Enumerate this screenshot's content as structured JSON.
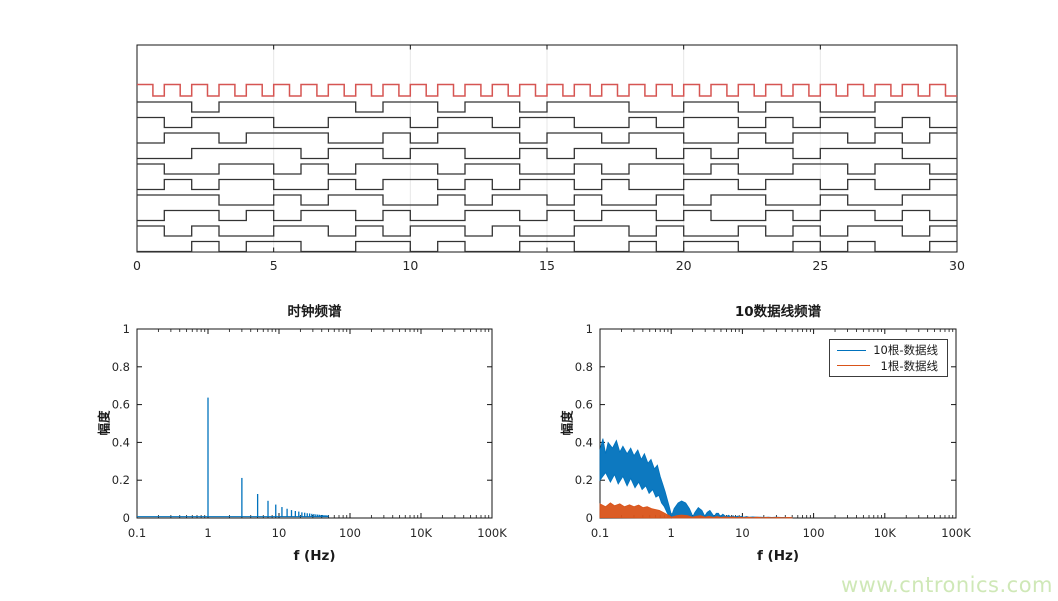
{
  "watermark": {
    "text": "www.cntronics.com",
    "color": "#cfe8b7"
  },
  "colors": {
    "clock_red": "#d65552",
    "data_black": "#333333",
    "series_blue": "#0072BD",
    "series_orange": "#D95319",
    "grid": "#e7e7e7",
    "axis": "#141414",
    "tick_label": "#262626"
  },
  "chart_data": [
    {
      "type": "line",
      "id": "digital-waveforms",
      "title": "",
      "xlim": [
        0,
        30
      ],
      "xticks": [
        0,
        5,
        10,
        15,
        20,
        25,
        30
      ],
      "x_tick_labels": [
        "0",
        "5",
        "10",
        "15",
        "20",
        "25",
        "30"
      ],
      "grid": "vertical-major",
      "clock": {
        "period": 1,
        "duty_high": 0.58,
        "cycles": 30,
        "color": "#d65552"
      },
      "data_signals": {
        "count": 10,
        "bit_period": 1,
        "color": "#333333",
        "bits": [
          [
            1,
            1,
            0,
            1,
            1,
            1,
            1,
            1,
            0,
            1,
            1,
            0,
            1,
            1,
            0,
            1,
            1,
            1,
            0,
            0,
            1,
            1,
            0,
            1,
            1,
            0,
            0,
            1,
            1,
            1
          ],
          [
            1,
            0,
            1,
            1,
            1,
            0,
            0,
            1,
            1,
            1,
            0,
            1,
            1,
            0,
            1,
            1,
            0,
            0,
            1,
            0,
            1,
            1,
            0,
            1,
            0,
            1,
            1,
            0,
            1,
            0
          ],
          [
            0,
            1,
            1,
            0,
            1,
            1,
            1,
            0,
            0,
            1,
            0,
            1,
            1,
            1,
            0,
            1,
            1,
            0,
            1,
            1,
            0,
            0,
            1,
            0,
            1,
            1,
            0,
            1,
            0,
            1
          ],
          [
            0,
            0,
            1,
            1,
            1,
            1,
            0,
            1,
            1,
            0,
            1,
            1,
            0,
            0,
            1,
            0,
            1,
            1,
            1,
            0,
            1,
            0,
            1,
            1,
            0,
            1,
            1,
            1,
            0,
            0
          ],
          [
            1,
            0,
            0,
            1,
            1,
            0,
            1,
            0,
            1,
            1,
            1,
            0,
            1,
            1,
            0,
            0,
            1,
            0,
            1,
            1,
            0,
            1,
            0,
            0,
            1,
            1,
            0,
            1,
            1,
            0
          ],
          [
            0,
            1,
            0,
            1,
            1,
            0,
            0,
            1,
            0,
            1,
            1,
            0,
            1,
            0,
            1,
            1,
            0,
            1,
            0,
            0,
            1,
            1,
            0,
            1,
            1,
            0,
            1,
            0,
            0,
            1
          ],
          [
            1,
            1,
            1,
            0,
            0,
            1,
            0,
            1,
            1,
            0,
            0,
            1,
            0,
            1,
            1,
            0,
            1,
            0,
            0,
            1,
            0,
            1,
            1,
            0,
            0,
            1,
            0,
            0,
            1,
            1
          ],
          [
            0,
            1,
            1,
            0,
            1,
            0,
            1,
            1,
            0,
            1,
            0,
            0,
            1,
            1,
            0,
            1,
            0,
            1,
            1,
            0,
            1,
            0,
            0,
            1,
            0,
            1,
            1,
            0,
            1,
            0
          ],
          [
            1,
            0,
            1,
            0,
            0,
            1,
            1,
            0,
            1,
            0,
            1,
            1,
            0,
            1,
            0,
            0,
            1,
            1,
            0,
            1,
            0,
            0,
            1,
            0,
            1,
            0,
            1,
            1,
            0,
            1
          ],
          [
            0,
            0,
            1,
            0,
            1,
            1,
            0,
            0,
            1,
            1,
            0,
            1,
            0,
            0,
            1,
            1,
            0,
            0,
            1,
            0,
            1,
            1,
            0,
            0,
            1,
            0,
            1,
            0,
            0,
            1
          ]
        ]
      }
    },
    {
      "type": "stem",
      "id": "clock-spectrum",
      "title": "时钟频谱",
      "xlabel": "f (Hz)",
      "ylabel": "幅度",
      "xscale": "log",
      "xticklabels": [
        "0.1",
        "1",
        "10",
        "100",
        "10K",
        "100K"
      ],
      "ylim": [
        0,
        1
      ],
      "yticks": [
        0,
        0.2,
        0.4,
        0.6,
        0.8,
        1
      ],
      "color": "#0072BD",
      "baseline_level": 0.007,
      "baseline_range": [
        0.1,
        50
      ],
      "frequencies": [
        1,
        3,
        5,
        7,
        9,
        11,
        13,
        15,
        17,
        19,
        21,
        23,
        25,
        27,
        29,
        31,
        33,
        35,
        37,
        39,
        41,
        43,
        45,
        47,
        49
      ],
      "amplitudes": [
        0.637,
        0.212,
        0.127,
        0.091,
        0.071,
        0.058,
        0.049,
        0.042,
        0.037,
        0.034,
        0.03,
        0.028,
        0.025,
        0.024,
        0.022,
        0.021,
        0.019,
        0.018,
        0.017,
        0.016,
        0.016,
        0.015,
        0.014,
        0.014,
        0.013
      ]
    },
    {
      "type": "line",
      "id": "data-lines-spectrum",
      "title": "10数据线频谱",
      "xlabel": "f (Hz)",
      "ylabel": "幅度",
      "xscale": "log",
      "xticklabels": [
        "0.1",
        "1",
        "10",
        "100",
        "10K",
        "100K"
      ],
      "ylim": [
        0,
        1
      ],
      "yticks": [
        0,
        0.2,
        0.4,
        0.6,
        0.8,
        1
      ],
      "legend": {
        "position": "northeast",
        "entries": [
          {
            "label": "10根-数据线",
            "color": "#0072BD"
          },
          {
            "label": "1根-数据线",
            "color": "#D95319"
          }
        ]
      },
      "series": [
        {
          "name": "10根-数据线",
          "color": "#0072BD",
          "regions": [
            {
              "upper": [
                [
                  0.1,
                  0.36
                ],
                [
                  0.11,
                  0.42
                ],
                [
                  0.12,
                  0.34
                ],
                [
                  0.13,
                  0.4
                ],
                [
                  0.15,
                  0.37
                ],
                [
                  0.17,
                  0.41
                ],
                [
                  0.19,
                  0.35
                ],
                [
                  0.21,
                  0.38
                ],
                [
                  0.24,
                  0.34
                ],
                [
                  0.27,
                  0.37
                ],
                [
                  0.3,
                  0.33
                ],
                [
                  0.34,
                  0.36
                ],
                [
                  0.38,
                  0.31
                ],
                [
                  0.42,
                  0.34
                ],
                [
                  0.47,
                  0.29
                ],
                [
                  0.52,
                  0.31
                ],
                [
                  0.58,
                  0.26
                ],
                [
                  0.64,
                  0.28
                ],
                [
                  0.7,
                  0.22
                ],
                [
                  0.76,
                  0.18
                ],
                [
                  0.82,
                  0.14
                ],
                [
                  0.88,
                  0.1
                ],
                [
                  0.94,
                  0.06
                ],
                [
                  1.0,
                  0.02
                ]
              ],
              "lower": [
                [
                  0.1,
                  0.2
                ],
                [
                  0.12,
                  0.24
                ],
                [
                  0.14,
                  0.19
                ],
                [
                  0.16,
                  0.23
                ],
                [
                  0.18,
                  0.18
                ],
                [
                  0.21,
                  0.22
                ],
                [
                  0.24,
                  0.17
                ],
                [
                  0.27,
                  0.21
                ],
                [
                  0.31,
                  0.16
                ],
                [
                  0.35,
                  0.19
                ],
                [
                  0.39,
                  0.15
                ],
                [
                  0.44,
                  0.17
                ],
                [
                  0.49,
                  0.13
                ],
                [
                  0.55,
                  0.15
                ],
                [
                  0.61,
                  0.11
                ],
                [
                  0.67,
                  0.12
                ],
                [
                  0.73,
                  0.08
                ],
                [
                  0.8,
                  0.06
                ],
                [
                  0.87,
                  0.03
                ],
                [
                  0.93,
                  0.01
                ],
                [
                  1.0,
                  0.0
                ]
              ]
            },
            {
              "upper": [
                [
                  1.0,
                  0.005
                ],
                [
                  1.1,
                  0.05
                ],
                [
                  1.25,
                  0.08
                ],
                [
                  1.4,
                  0.09
                ],
                [
                  1.6,
                  0.08
                ],
                [
                  1.8,
                  0.05
                ],
                [
                  1.95,
                  0.02
                ],
                [
                  2.0,
                  0.005
                ],
                [
                  2.15,
                  0.03
                ],
                [
                  2.4,
                  0.055
                ],
                [
                  2.7,
                  0.04
                ],
                [
                  2.95,
                  0.01
                ],
                [
                  3.2,
                  0.03
                ],
                [
                  3.5,
                  0.04
                ],
                [
                  3.8,
                  0.02
                ],
                [
                  4.0,
                  0.008
                ],
                [
                  4.3,
                  0.025
                ],
                [
                  4.6,
                  0.025
                ],
                [
                  4.9,
                  0.008
                ],
                [
                  5.3,
                  0.02
                ],
                [
                  5.9,
                  0.007
                ],
                [
                  6.4,
                  0.015
                ],
                [
                  6.9,
                  0.006
                ],
                [
                  7.4,
                  0.012
                ],
                [
                  7.9,
                  0.005
                ],
                [
                  8.5,
                  0.01
                ],
                [
                  9.0,
                  0.005
                ],
                [
                  9.6,
                  0.009
                ],
                [
                  10.5,
                  0.004
                ],
                [
                  11.5,
                  0.008
                ],
                [
                  12.5,
                  0.004
                ],
                [
                  14,
                  0.006
                ],
                [
                  16,
                  0.004
                ],
                [
                  18,
                  0.005
                ],
                [
                  20,
                  0.003
                ],
                [
                  23,
                  0.004
                ],
                [
                  26,
                  0.003
                ],
                [
                  30,
                  0.004
                ],
                [
                  35,
                  0.003
                ],
                [
                  40,
                  0.003
                ],
                [
                  45,
                  0.002
                ],
                [
                  50,
                  0.003
                ]
              ],
              "lower": [
                [
                  1.0,
                  0.0
                ],
                [
                  50,
                  0.0
                ]
              ]
            }
          ]
        },
        {
          "name": "1根-数据线",
          "color": "#D95319",
          "regions": [
            {
              "upper": [
                [
                  0.1,
                  0.075
                ],
                [
                  0.12,
                  0.06
                ],
                [
                  0.14,
                  0.08
                ],
                [
                  0.16,
                  0.065
                ],
                [
                  0.19,
                  0.075
                ],
                [
                  0.22,
                  0.06
                ],
                [
                  0.26,
                  0.07
                ],
                [
                  0.3,
                  0.06
                ],
                [
                  0.35,
                  0.068
                ],
                [
                  0.4,
                  0.055
                ],
                [
                  0.46,
                  0.06
                ],
                [
                  0.53,
                  0.05
                ],
                [
                  0.6,
                  0.045
                ],
                [
                  0.68,
                  0.04
                ],
                [
                  0.77,
                  0.03
                ],
                [
                  0.86,
                  0.02
                ],
                [
                  0.95,
                  0.012
                ],
                [
                  1.0,
                  0.006
                ]
              ],
              "lower": [
                [
                  0.1,
                  0.002
                ],
                [
                  1.0,
                  0.0
                ]
              ]
            },
            {
              "upper": [
                [
                  1.0,
                  0.004
                ],
                [
                  1.2,
                  0.012
                ],
                [
                  1.4,
                  0.016
                ],
                [
                  1.7,
                  0.012
                ],
                [
                  2.0,
                  0.004
                ],
                [
                  2.3,
                  0.01
                ],
                [
                  2.6,
                  0.012
                ],
                [
                  3.0,
                  0.004
                ],
                [
                  3.4,
                  0.009
                ],
                [
                  3.9,
                  0.003
                ],
                [
                  4.4,
                  0.008
                ],
                [
                  5.0,
                  0.003
                ],
                [
                  5.7,
                  0.006
                ],
                [
                  6.5,
                  0.003
                ],
                [
                  7.3,
                  0.006
                ],
                [
                  8.2,
                  0.002
                ],
                [
                  9.2,
                  0.005
                ],
                [
                  10.5,
                  0.002
                ],
                [
                  12,
                  0.004
                ],
                [
                  14,
                  0.002
                ],
                [
                  16,
                  0.004
                ],
                [
                  19,
                  0.002
                ],
                [
                  22,
                  0.003
                ],
                [
                  26,
                  0.002
                ],
                [
                  31,
                  0.003
                ],
                [
                  37,
                  0.002
                ],
                [
                  44,
                  0.003
                ],
                [
                  50,
                  0.002
                ]
              ],
              "lower": [
                [
                  1.0,
                  0.0
                ],
                [
                  50,
                  0.0
                ]
              ]
            }
          ]
        }
      ]
    }
  ]
}
